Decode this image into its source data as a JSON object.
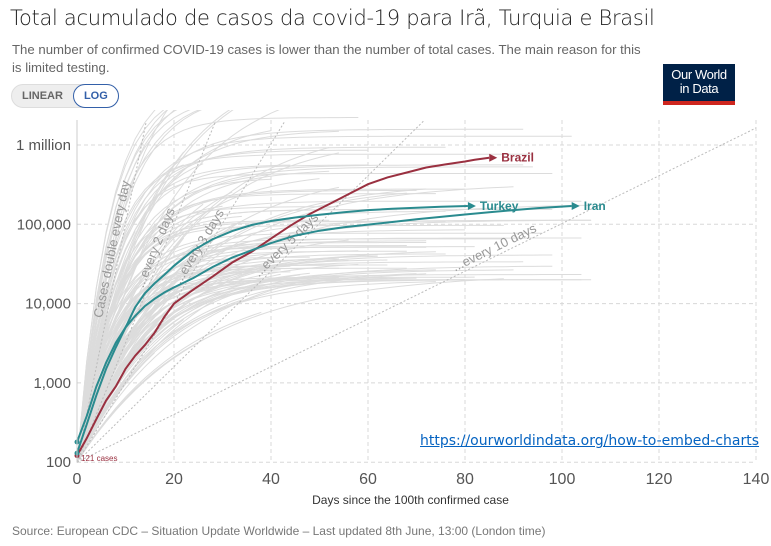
{
  "title": "Total acumulado de casos da covid-19 para Irã, Turquia e Brasil",
  "subtitle": "The number of confirmed COVID-19 cases is lower than the number of total cases. The main reason for this is limited testing.",
  "scale_toggle": {
    "options": [
      "LINEAR",
      "LOG"
    ],
    "selected": "LOG"
  },
  "logo": {
    "line1": "Our World",
    "line2": "in Data"
  },
  "embed_link": "https://ourworldindata.org/how-to-embed-charts",
  "source": "Source: European CDC – Situation Update Worldwide – Last updated 8th June, 13:00 (London time)",
  "colors": {
    "teal": "#2a8b8f",
    "brazil": "#9a3040",
    "background_lines": "#dcdcdc",
    "grid": "#d8d8d8",
    "logo_bg": "#002147",
    "logo_bar": "#ce261e"
  },
  "chart_data": {
    "type": "line",
    "title": "Total acumulado de casos da covid-19 para Irã, Turquia e Brasil",
    "xlabel": "Days since the 100th confirmed case",
    "ylabel": "",
    "xlim": [
      0,
      140
    ],
    "ylim": [
      100,
      2000000
    ],
    "yscale": "log",
    "x_ticks": [
      0,
      20,
      40,
      60,
      80,
      100,
      120,
      140
    ],
    "y_ticks": [
      {
        "value": 100,
        "label": "100"
      },
      {
        "value": 1000,
        "label": "1,000"
      },
      {
        "value": 10000,
        "label": "10,000"
      },
      {
        "value": 100000,
        "label": "100,000"
      },
      {
        "value": 1000000,
        "label": "1 million"
      }
    ],
    "grid": true,
    "start_annotation": "121 cases",
    "doubling_lines": [
      {
        "label": "Cases double every day",
        "days": 1
      },
      {
        "label": "...every 2 days",
        "days": 2
      },
      {
        "label": "...every 3 days",
        "days": 3
      },
      {
        "label": "...every 5 days",
        "days": 5
      },
      {
        "label": "...every 10 days",
        "days": 10
      }
    ],
    "series": [
      {
        "name": "Brazil",
        "color": "#9a3040",
        "x": [
          0,
          2,
          4,
          6,
          8,
          10,
          12,
          14,
          16,
          18,
          20,
          24,
          28,
          32,
          36,
          40,
          44,
          48,
          52,
          56,
          60,
          64,
          68,
          72,
          76,
          80,
          82,
          85
        ],
        "y": [
          121,
          200,
          350,
          600,
          900,
          1500,
          2200,
          3000,
          4300,
          6800,
          10000,
          15000,
          22000,
          33000,
          45000,
          66000,
          96000,
          135000,
          180000,
          240000,
          320000,
          390000,
          450000,
          520000,
          570000,
          620000,
          650000,
          691000
        ]
      },
      {
        "name": "Turkey",
        "color": "#2a8b8f",
        "x": [
          0,
          2,
          4,
          6,
          8,
          10,
          12,
          14,
          16,
          18,
          20,
          24,
          28,
          32,
          36,
          40,
          45,
          50,
          55,
          60,
          65,
          70,
          75,
          80.6
        ],
        "y": [
          130,
          300,
          700,
          1500,
          2800,
          5000,
          9000,
          13500,
          18000,
          23000,
          30000,
          47000,
          65000,
          82000,
          98000,
          110000,
          122000,
          132000,
          142000,
          151000,
          157000,
          162000,
          166000,
          170000
        ]
      },
      {
        "name": "Iran",
        "color": "#2a8b8f",
        "x": [
          0,
          2,
          4,
          6,
          8,
          10,
          12,
          14,
          16,
          18,
          20,
          24,
          28,
          32,
          36,
          40,
          45,
          50,
          55,
          60,
          65,
          70,
          75,
          80,
          85,
          90,
          95,
          102
        ],
        "y": [
          180,
          380,
          900,
          1800,
          3200,
          5000,
          7000,
          9300,
          11500,
          13800,
          16000,
          21000,
          29000,
          38000,
          47000,
          58000,
          72000,
          83000,
          92000,
          99000,
          107000,
          116000,
          124000,
          133000,
          142000,
          151000,
          160000,
          170000
        ]
      }
    ]
  }
}
